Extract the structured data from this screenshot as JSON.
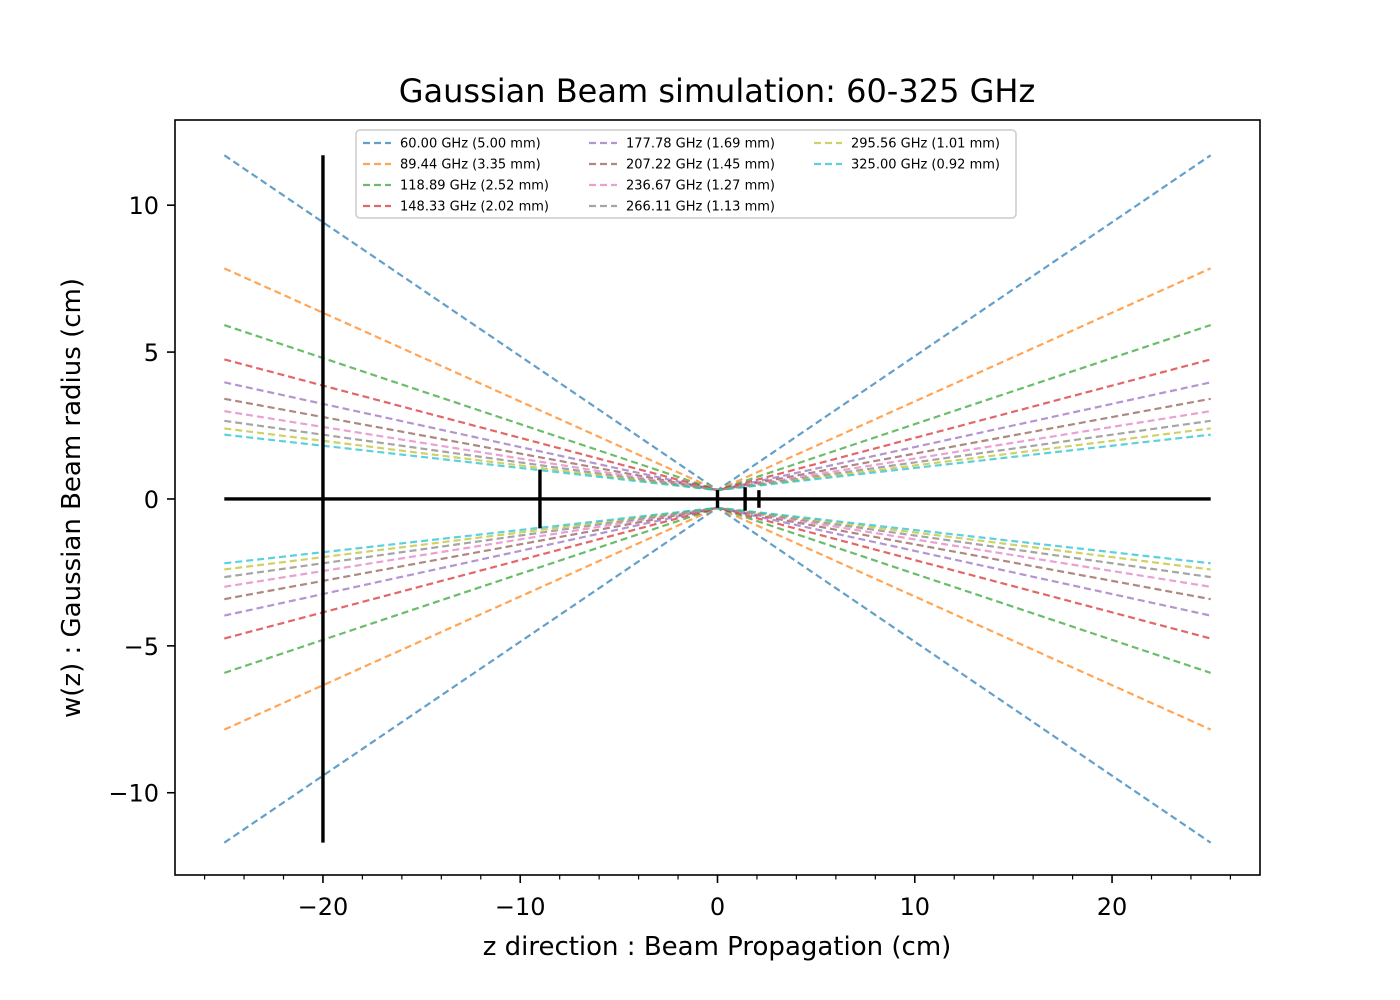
{
  "chart_data": {
    "type": "line",
    "title": "Gaussian Beam simulation: 60-325 GHz",
    "xlabel": "z direction : Beam Propagation (cm)",
    "ylabel": "w(z) : Gaussian Beam radius (cm)",
    "xlim": [
      -27.5,
      27.5
    ],
    "ylim": [
      -12.8,
      12.9
    ],
    "xticks": [
      -20,
      -10,
      0,
      10,
      20
    ],
    "xtick_labels": [
      "−20",
      "−10",
      "0",
      "10",
      "20"
    ],
    "yticks": [
      -10,
      -5,
      0,
      5,
      10
    ],
    "ytick_labels": [
      "−10",
      "−5",
      "0",
      "5",
      "10"
    ],
    "x_minor_step": 2,
    "grid": false,
    "legend_position": "top-center",
    "legend_columns": 3,
    "z_range": [
      -25,
      25
    ],
    "waist_z": 0,
    "waist_radius": 0.3,
    "series": [
      {
        "name": "60.00 GHz (5.00 mm)",
        "label": "60.00 GHz (5.00 mm)",
        "color": "#1f77b4",
        "w_at_edge": 11.7
      },
      {
        "name": "89.44 GHz (3.35 mm)",
        "label": "89.44 GHz (3.35 mm)",
        "color": "#ff7f0e",
        "w_at_edge": 7.85
      },
      {
        "name": "118.89 GHz (2.52 mm)",
        "label": "118.89 GHz (2.52 mm)",
        "color": "#2ca02c",
        "w_at_edge": 5.92
      },
      {
        "name": "148.33 GHz (2.02 mm)",
        "label": "148.33 GHz (2.02 mm)",
        "color": "#d62728",
        "w_at_edge": 4.75
      },
      {
        "name": "177.78 GHz (1.69 mm)",
        "label": "177.78 GHz (1.69 mm)",
        "color": "#9467bd",
        "w_at_edge": 3.97
      },
      {
        "name": "207.22 GHz (1.45 mm)",
        "label": "207.22 GHz (1.45 mm)",
        "color": "#8c564b",
        "w_at_edge": 3.41
      },
      {
        "name": "236.67 GHz (1.27 mm)",
        "label": "236.67 GHz (1.27 mm)",
        "color": "#e377c2",
        "w_at_edge": 2.99
      },
      {
        "name": "266.11 GHz (1.13 mm)",
        "label": "266.11 GHz (1.13 mm)",
        "color": "#7f7f7f",
        "w_at_edge": 2.66
      },
      {
        "name": "295.56 GHz (1.01 mm)",
        "label": "295.56 GHz (1.01 mm)",
        "color": "#bcbd22",
        "w_at_edge": 2.4
      },
      {
        "name": "325.00 GHz (0.92 mm)",
        "label": "325.00 GHz (0.92 mm)",
        "color": "#17becf",
        "w_at_edge": 2.19
      }
    ],
    "black_lines": [
      {
        "name": "optical-axis",
        "x1": -25,
        "y1": 0,
        "x2": 25,
        "y2": 0
      },
      {
        "name": "aperture-z-minus-20",
        "x1": -20,
        "y1": -11.7,
        "x2": -20,
        "y2": 11.7
      },
      {
        "name": "element-z-minus-9",
        "x1": -9,
        "y1": -1.0,
        "x2": -9,
        "y2": 1.0
      },
      {
        "name": "waist-marker-z-0",
        "x1": 0,
        "y1": -0.3,
        "x2": 0,
        "y2": 0.3
      },
      {
        "name": "element-z-1-4",
        "x1": 1.4,
        "y1": -0.4,
        "x2": 1.4,
        "y2": 0.4
      },
      {
        "name": "element-z-2-1",
        "x1": 2.1,
        "y1": -0.3,
        "x2": 2.1,
        "y2": 0.3
      }
    ]
  }
}
